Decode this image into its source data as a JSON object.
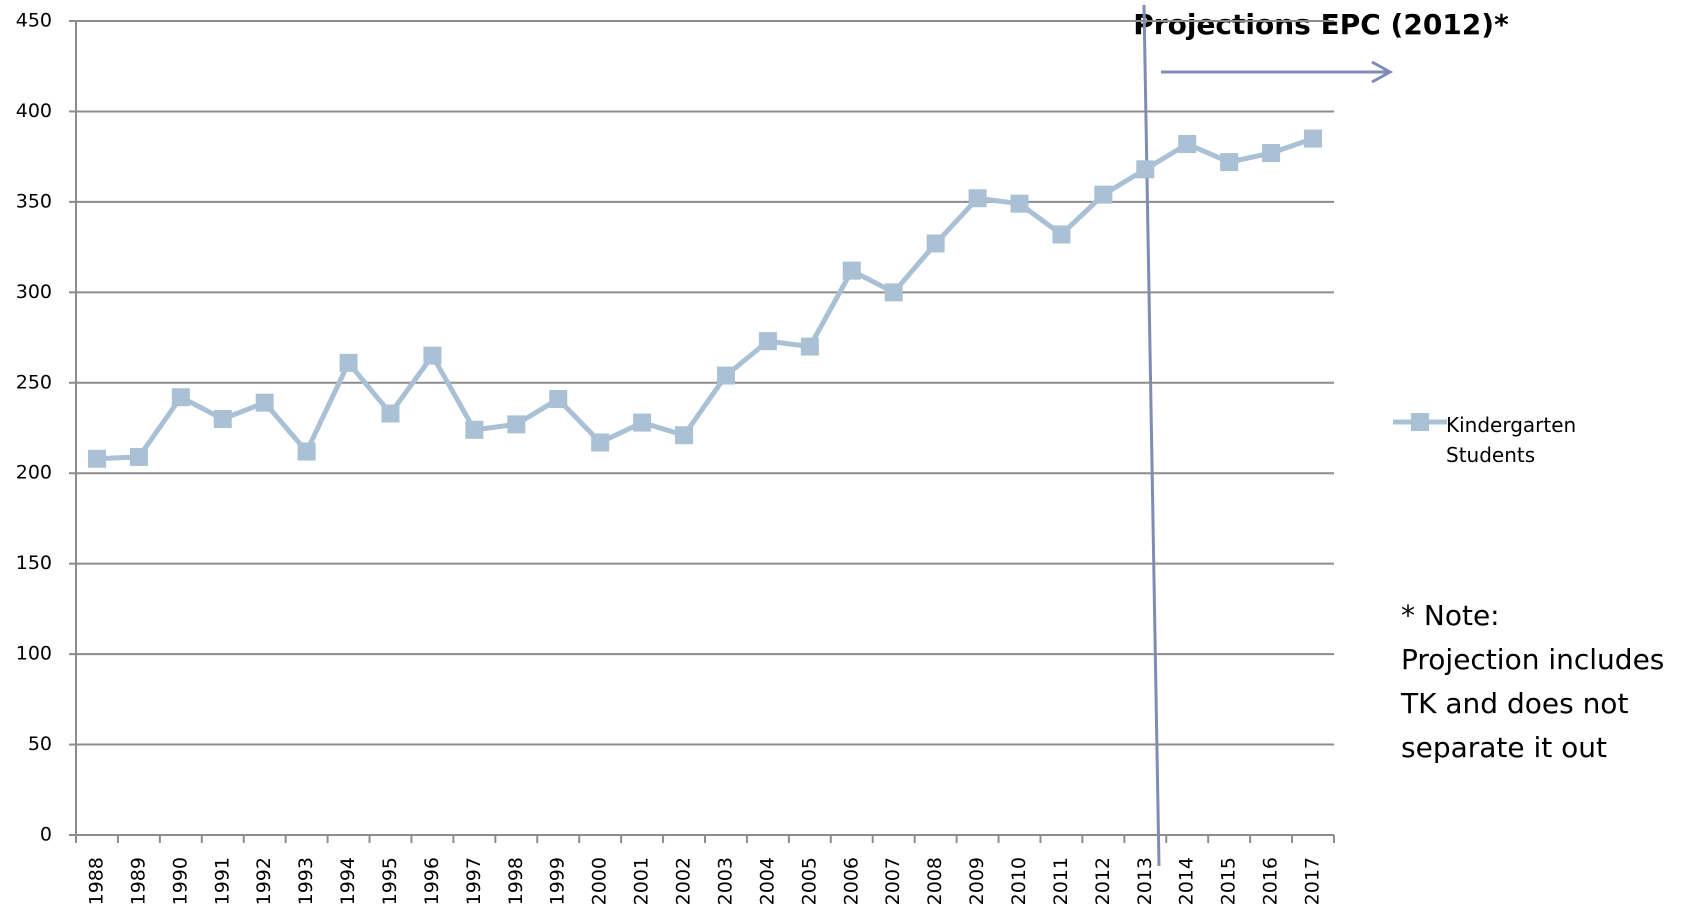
{
  "chart_data": {
    "type": "line",
    "annotation": "Projections EPC (2012)*",
    "note": [
      "* Note:",
      "Projection includes",
      "TK and does not",
      "separate it out"
    ],
    "categories": [
      "1988",
      "1989",
      "1990",
      "1991",
      "1992",
      "1993",
      "1994",
      "1995",
      "1996",
      "1997",
      "1998",
      "1999",
      "2000",
      "2001",
      "2002",
      "2003",
      "2004",
      "2005",
      "2006",
      "2007",
      "2008",
      "2009",
      "2010",
      "2011",
      "2012",
      "2013",
      "2014",
      "2015",
      "2016",
      "2017"
    ],
    "series": [
      {
        "name": "Kindergarten Students",
        "color": "#a9c0d5",
        "values": [
          208,
          209,
          242,
          230,
          239,
          212,
          261,
          233,
          265,
          224,
          227,
          241,
          217,
          228,
          221,
          254,
          273,
          270,
          312,
          300,
          327,
          352,
          349,
          332,
          354,
          368,
          382,
          372,
          377,
          385
        ]
      }
    ],
    "ylim": [
      0,
      450
    ],
    "yticks": [
      0,
      50,
      100,
      150,
      200,
      250,
      300,
      350,
      400,
      450
    ],
    "grid": true
  }
}
